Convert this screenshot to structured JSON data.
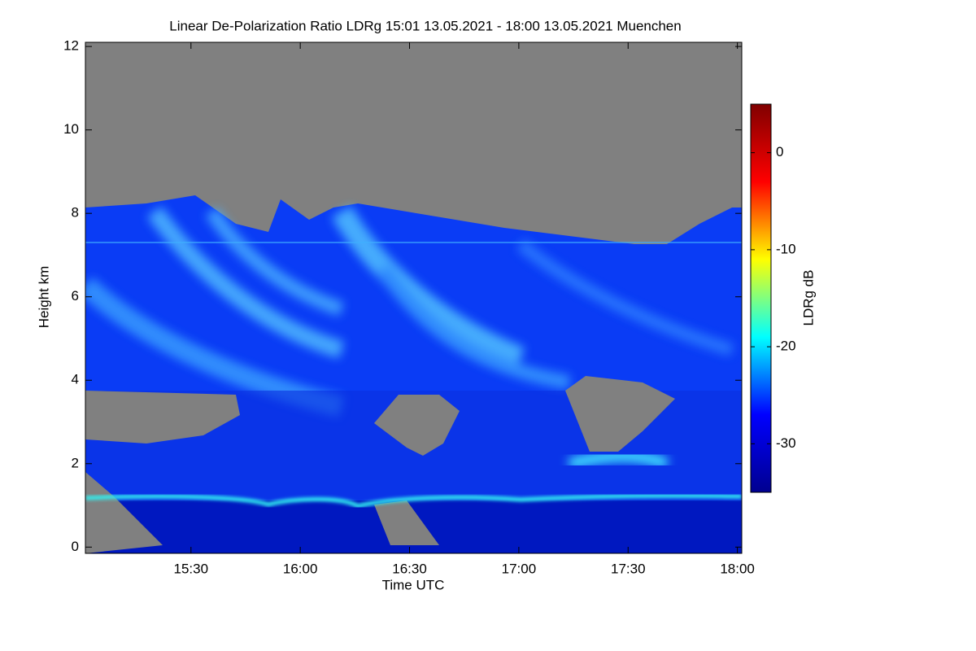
{
  "chart_data": {
    "type": "heatmap",
    "title": "Linear De-Polarization Ratio LDRg   15:01 13.05.2021 - 18:00 13.05.2021 Muenchen",
    "x_label": "Time UTC",
    "y_label": "Height km",
    "colorbar_label": "LDRg dB",
    "xlim": [
      15.017,
      18.02
    ],
    "xticks": [
      {
        "value": 15.5,
        "label": "15:30"
      },
      {
        "value": 16,
        "label": "16:00"
      },
      {
        "value": 16.5,
        "label": "16:30"
      },
      {
        "value": 17,
        "label": "17:00"
      },
      {
        "value": 17.5,
        "label": "17:30"
      },
      {
        "value": 18,
        "label": "18:00"
      }
    ],
    "ylim": [
      -0.15,
      12.1
    ],
    "yticks": [
      0,
      2,
      4,
      6,
      8,
      10,
      12
    ],
    "clim": [
      -35,
      5
    ],
    "cticks": [
      0,
      -10,
      -20,
      -30
    ],
    "colormap": [
      "#00008f",
      "#0000ff",
      "#00ffff",
      "#ffff00",
      "#ff0000",
      "#800000"
    ],
    "grid": false
  }
}
